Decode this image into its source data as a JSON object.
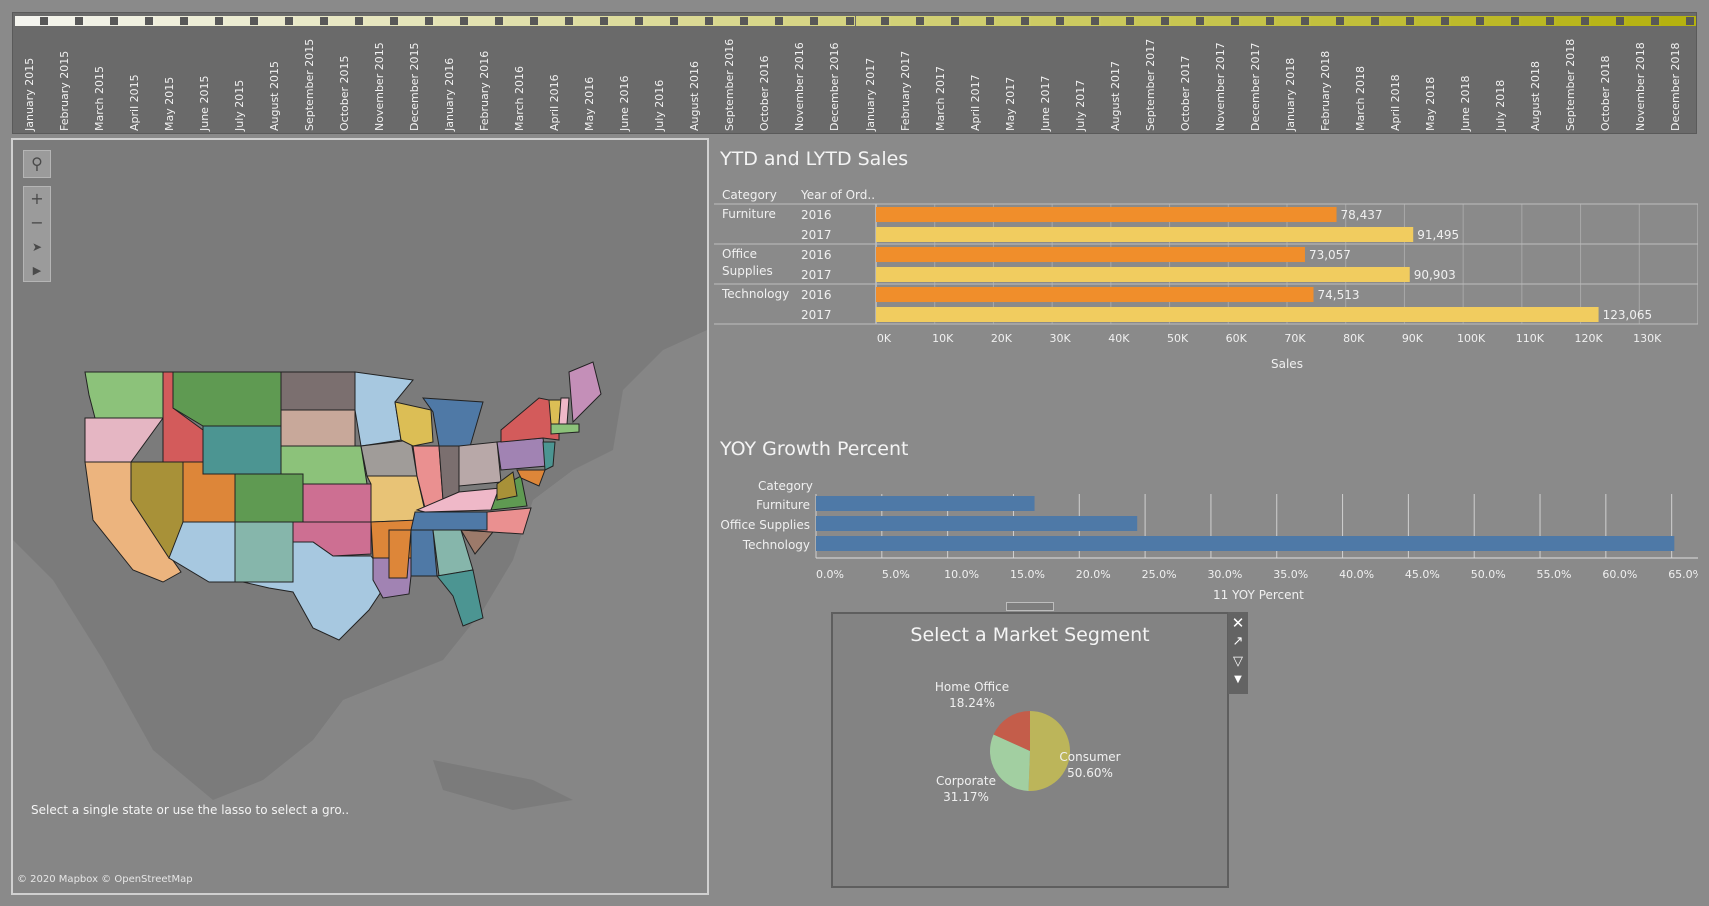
{
  "timeline": {
    "months": [
      "January 2015",
      "February 2015",
      "March 2015",
      "April 2015",
      "May 2015",
      "June 2015",
      "July 2015",
      "August 2015",
      "September 2015",
      "October 2015",
      "November 2015",
      "December 2015",
      "January 2016",
      "February 2016",
      "March 2016",
      "April 2016",
      "May 2016",
      "June 2016",
      "July 2016",
      "August 2016",
      "September 2016",
      "October 2016",
      "November 2016",
      "December 2016",
      "January 2017",
      "February 2017",
      "March 2017",
      "April 2017",
      "May 2017",
      "June 2017",
      "July 2017",
      "August 2017",
      "September 2017",
      "October 2017",
      "November 2017",
      "December 2017",
      "January 2018",
      "February 2018",
      "March 2018",
      "April 2018",
      "May 2018",
      "June 2018",
      "July 2018",
      "August 2018",
      "September 2018",
      "October 2018",
      "November 2018",
      "December 2018"
    ],
    "color_start": "#f4f4ee",
    "color_end": "#b5b20f"
  },
  "map": {
    "hint": "Select a single state or use the lasso to select a gro..",
    "credit": "© 2020 Mapbox © OpenStreetMap",
    "tools": [
      "search-icon",
      "zoom-in-icon",
      "zoom-out-icon",
      "pin-icon",
      "expand-icon"
    ]
  },
  "ytd_chart": {
    "title": "YTD and LYTD Sales",
    "header_category": "Category",
    "header_year": "Year of Ord..",
    "xlabel": "Sales",
    "colors": {
      "2016": "#f08e2b",
      "2017": "#f1cc5f"
    },
    "chart_data": {
      "type": "bar",
      "categories": [
        "Furniture",
        "Office Supplies",
        "Technology"
      ],
      "category_display": [
        [
          "Furniture"
        ],
        [
          "Office",
          "Supplies"
        ],
        [
          "Technology"
        ]
      ],
      "series": [
        {
          "name": "2016",
          "values": [
            78437,
            73057,
            74513
          ],
          "labels": [
            "78,437",
            "73,057",
            "74,513"
          ]
        },
        {
          "name": "2017",
          "values": [
            91495,
            90903,
            123065
          ],
          "labels": [
            "91,495",
            "90,903",
            "123,065"
          ]
        }
      ],
      "xticks": [
        "0K",
        "10K",
        "20K",
        "30K",
        "40K",
        "50K",
        "60K",
        "70K",
        "80K",
        "90K",
        "100K",
        "110K",
        "120K",
        "130K"
      ],
      "xlim": [
        0,
        140000
      ]
    }
  },
  "yoy_chart": {
    "title": "YOY Growth Percent",
    "header_category": "Category",
    "xlabel": "11 YOY Percent",
    "color": "#4e79a7",
    "chart_data": {
      "type": "bar",
      "categories": [
        "Furniture",
        "Office Supplies",
        "Technology"
      ],
      "values": [
        16.6,
        24.4,
        65.2
      ],
      "xticks": [
        "0.0%",
        "5.0%",
        "10.0%",
        "15.0%",
        "20.0%",
        "25.0%",
        "30.0%",
        "35.0%",
        "40.0%",
        "45.0%",
        "50.0%",
        "55.0%",
        "60.0%",
        "65.0%"
      ],
      "xlim": [
        0,
        67
      ]
    }
  },
  "pie_chart": {
    "title": "Select a Market Segment",
    "chart_data": {
      "type": "pie",
      "slices": [
        {
          "name": "Consumer",
          "value": 50.6,
          "label": "50.60%",
          "color": "#bcb55a"
        },
        {
          "name": "Corporate",
          "value": 31.17,
          "label": "31.17%",
          "color": "#a2cfa1"
        },
        {
          "name": "Home Office",
          "value": 18.24,
          "label": "18.24%",
          "color": "#c45d4a"
        }
      ]
    }
  }
}
